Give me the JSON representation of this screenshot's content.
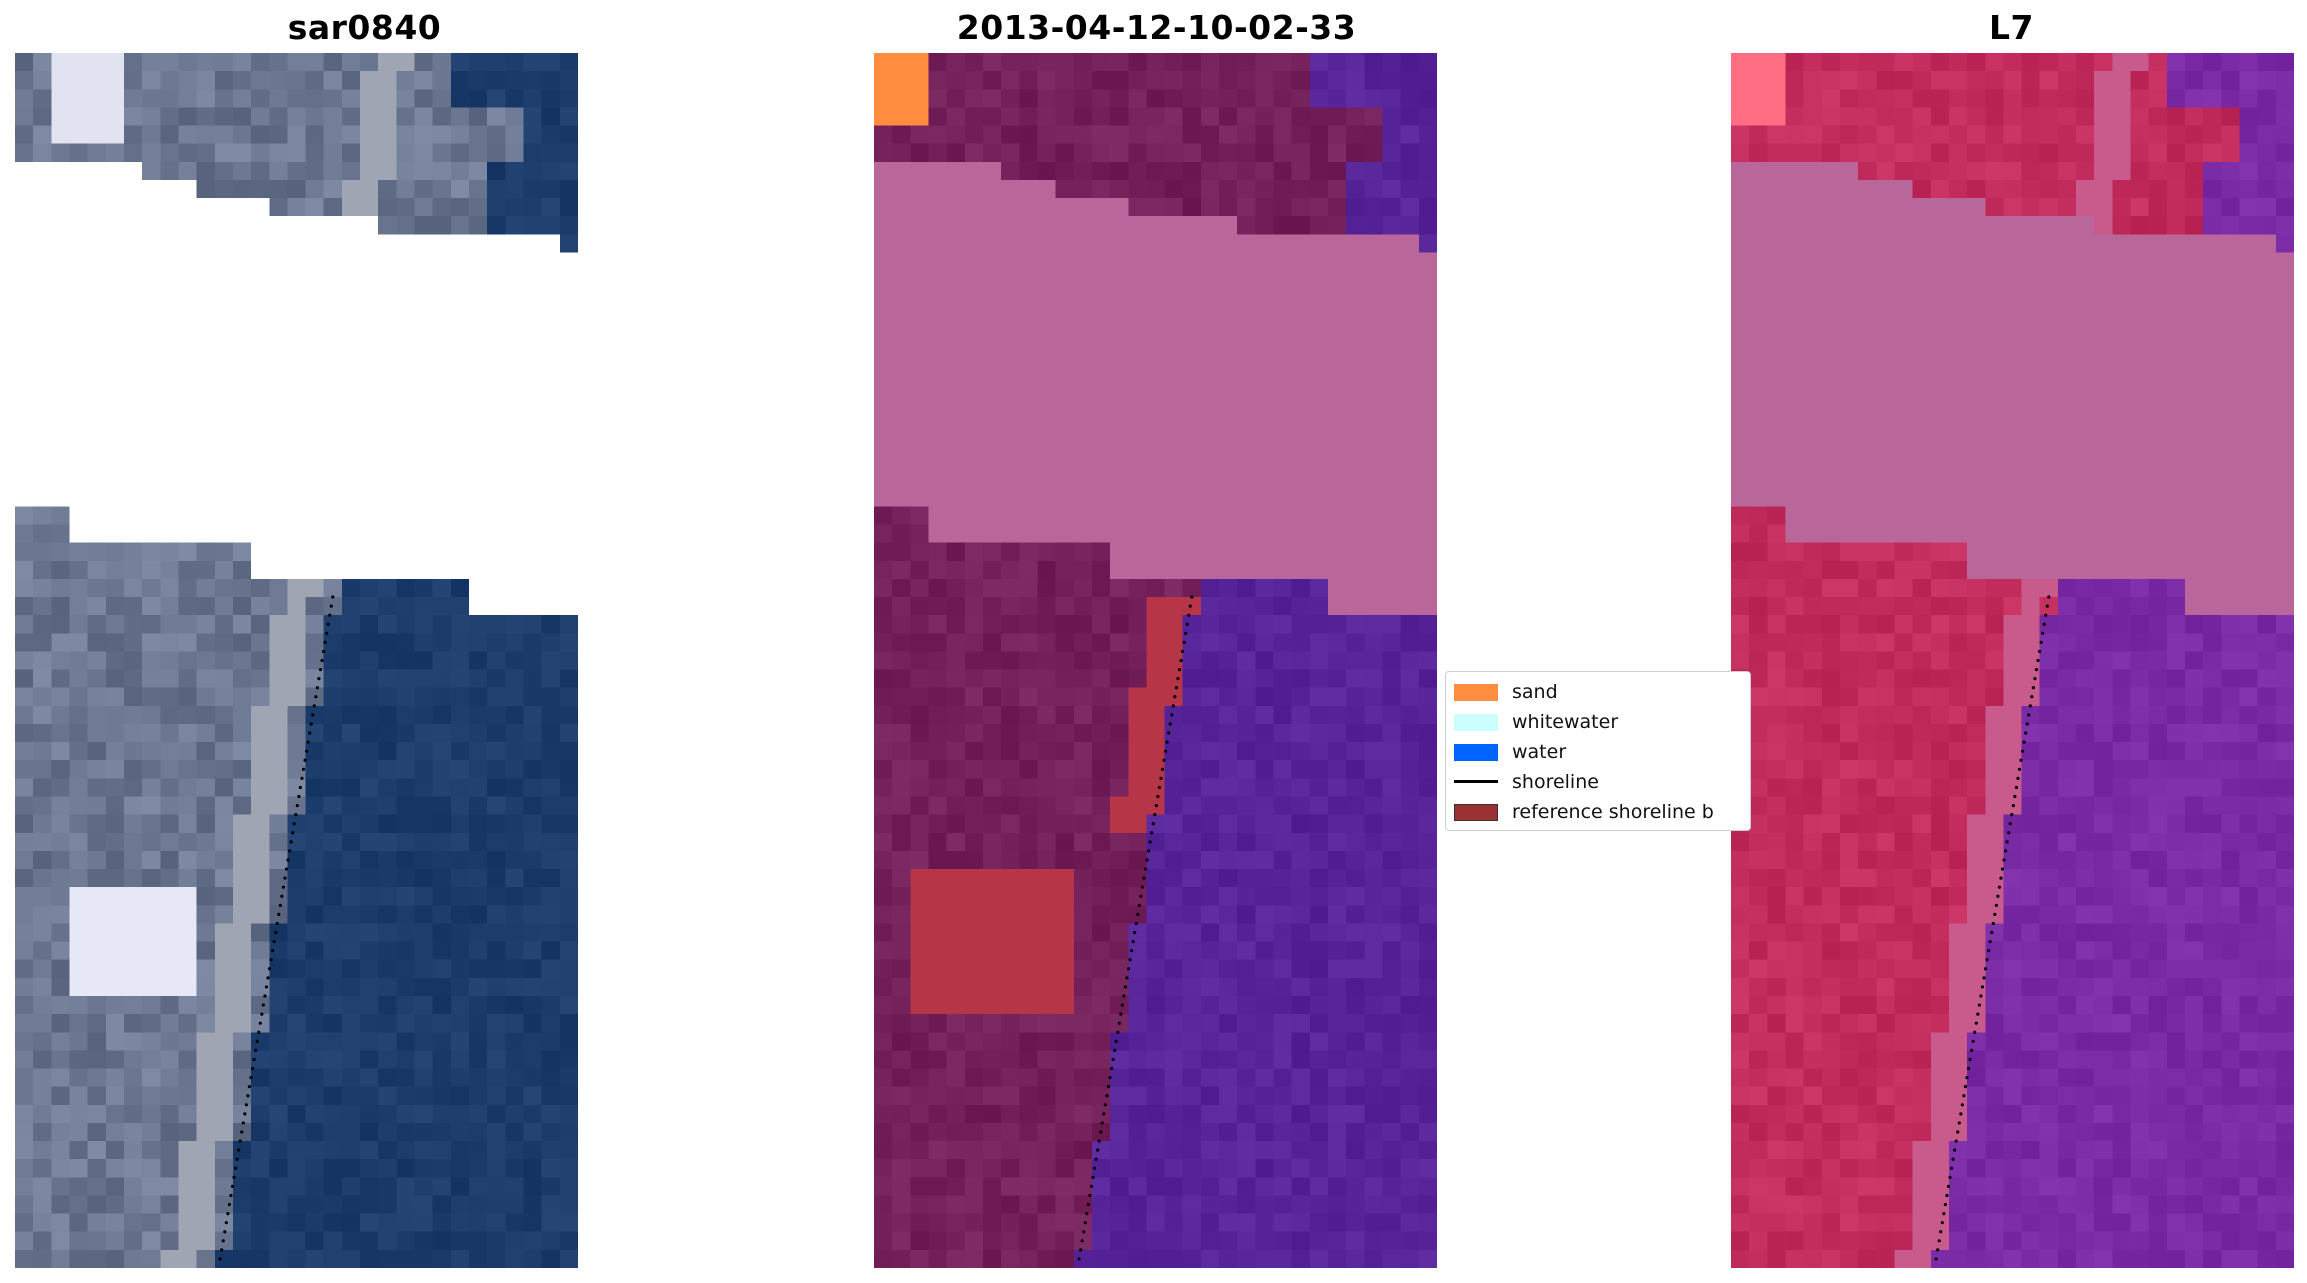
{
  "panels": [
    {
      "title": "sar0840",
      "kind": "rgb"
    },
    {
      "title": "2013-04-12-10-02-33",
      "kind": "classified"
    },
    {
      "title": "L7",
      "kind": "false-color"
    }
  ],
  "legend": {
    "items": [
      {
        "label": "sand",
        "color": "#ff8c3f",
        "type": "patch"
      },
      {
        "label": "whitewater",
        "color": "#ccffff",
        "type": "patch"
      },
      {
        "label": "water",
        "color": "#0064ff",
        "type": "patch"
      },
      {
        "label": "shoreline",
        "color": "#000000",
        "type": "line"
      },
      {
        "label": "reference shoreline b",
        "color": "#9b3132",
        "type": "patch"
      }
    ]
  },
  "colors": {
    "land_rgb": "#6b7690",
    "sea_rgb": "#1c3d6b",
    "cloud_mask": "#b9679a",
    "land_class": "#74205a",
    "buffer_class": "#b63647",
    "sea_class": "#572399",
    "land_fc": "#c22c5c",
    "sea_fc": "#7a2aa5"
  }
}
